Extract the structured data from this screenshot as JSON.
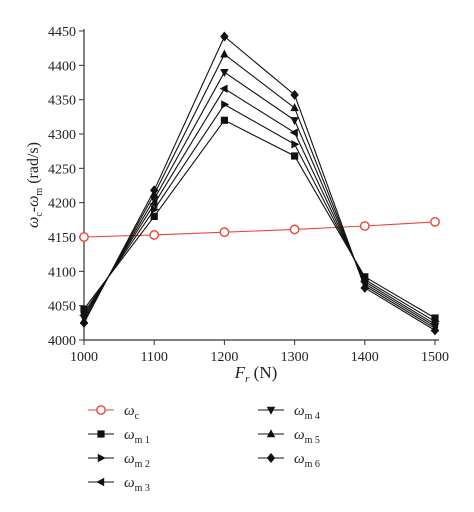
{
  "chart_data": {
    "type": "line",
    "title": "",
    "xlabel": {
      "main": "F",
      "sub": "r",
      "unit": " (N)"
    },
    "ylabel": {
      "a": "ω",
      "a_sub": "c",
      "dash": "-",
      "b": "ω",
      "b_sub": "m",
      "unit": " (rad/s)"
    },
    "x": [
      1000,
      1100,
      1200,
      1300,
      1400,
      1500
    ],
    "xlim": [
      1000,
      1500
    ],
    "ylim": [
      4000,
      4450
    ],
    "xticks": [
      "1000",
      "1100",
      "1200",
      "1300",
      "1400",
      "1500"
    ],
    "yticks": [
      "4000",
      "4050",
      "4100",
      "4150",
      "4200",
      "4250",
      "4300",
      "4350",
      "4400",
      "4450"
    ],
    "grid": false,
    "legend_position": "bottom",
    "series": [
      {
        "name": "ω",
        "sub": "c",
        "marker": "circle-open",
        "color": "#e8453c",
        "values": [
          4150,
          4153,
          4157,
          4161,
          4166,
          4172
        ]
      },
      {
        "name": "ω",
        "sub": "m 1",
        "marker": "square",
        "color": "#111111",
        "values": [
          4045,
          4180,
          4320,
          4268,
          4092,
          4032
        ]
      },
      {
        "name": "ω",
        "sub": "m 2",
        "marker": "triangle-right",
        "color": "#111111",
        "values": [
          4040,
          4190,
          4343,
          4285,
          4088,
          4027
        ]
      },
      {
        "name": "ω",
        "sub": "m 3",
        "marker": "triangle-left",
        "color": "#111111",
        "values": [
          4036,
          4198,
          4366,
          4302,
          4085,
          4023
        ]
      },
      {
        "name": "ω",
        "sub": "m 4",
        "marker": "triangle-down",
        "color": "#111111",
        "values": [
          4032,
          4205,
          4390,
          4320,
          4082,
          4020
        ]
      },
      {
        "name": "ω",
        "sub": "m 5",
        "marker": "triangle-up",
        "color": "#111111",
        "values": [
          4028,
          4212,
          4416,
          4338,
          4079,
          4017
        ]
      },
      {
        "name": "ω",
        "sub": "m 6",
        "marker": "diamond",
        "color": "#111111",
        "values": [
          4025,
          4218,
          4442,
          4357,
          4076,
          4014
        ]
      }
    ]
  }
}
